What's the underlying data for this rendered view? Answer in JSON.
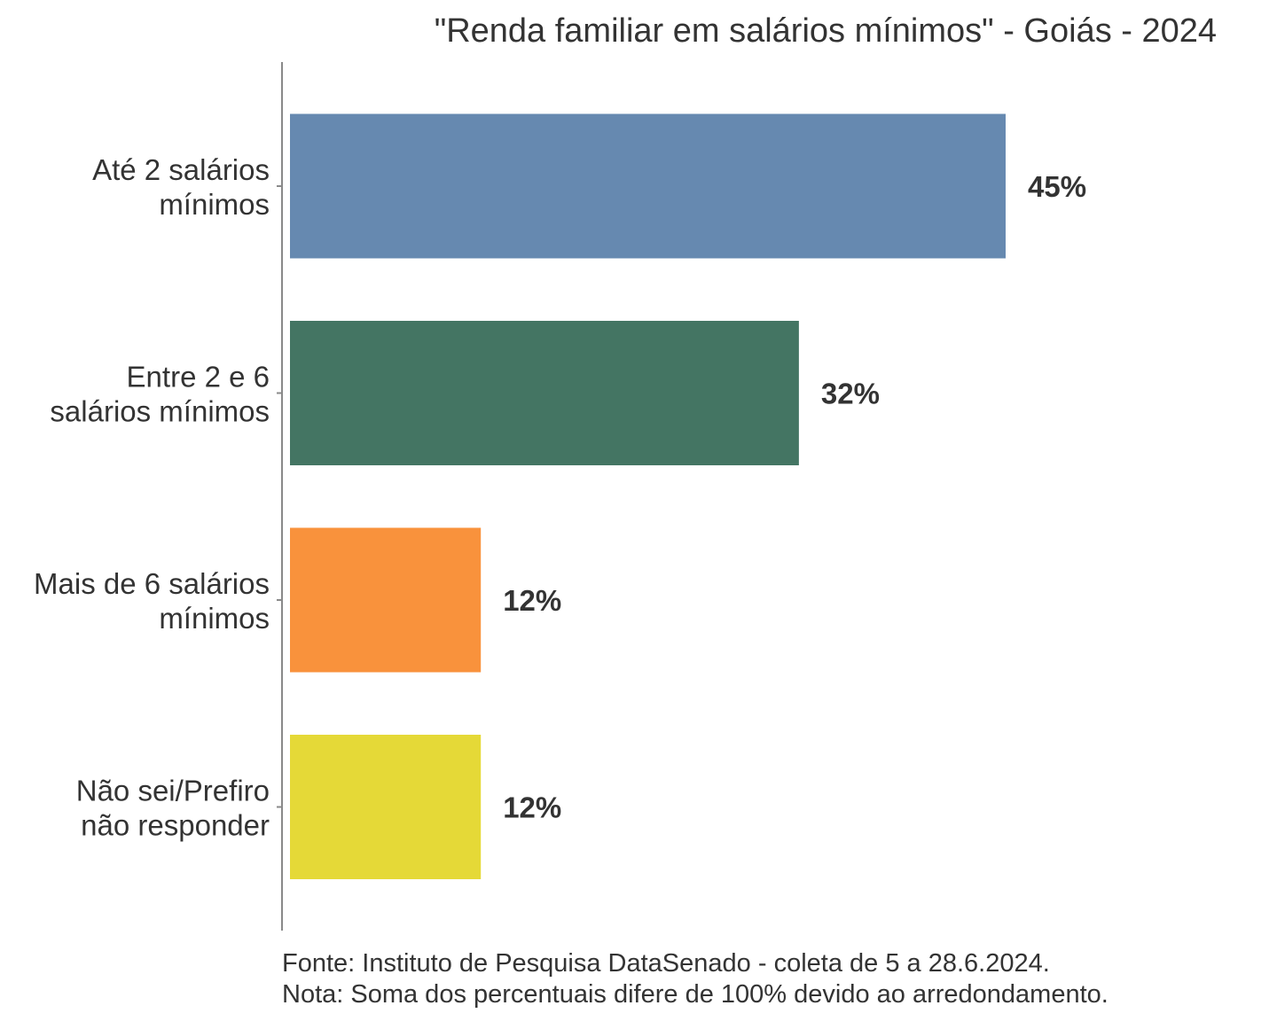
{
  "chart_data": {
    "type": "bar",
    "orientation": "horizontal",
    "title": "\"Renda familiar em salários mínimos\" - Goiás - 2024",
    "categories": [
      [
        "Até 2 salários",
        "mínimos"
      ],
      [
        "Entre 2 e 6",
        "salários mínimos"
      ],
      [
        "Mais de 6 salários",
        "mínimos"
      ],
      [
        "Não sei/Prefiro",
        "não responder"
      ]
    ],
    "values": [
      45,
      32,
      12,
      12
    ],
    "value_labels": [
      "45%",
      "32%",
      "12%",
      "12%"
    ],
    "colors": [
      "#6689b0",
      "#447563",
      "#f9923c",
      "#e5d937"
    ],
    "xlim": [
      0,
      100
    ],
    "xlabel": "",
    "ylabel": "",
    "grid": false,
    "legend": "none",
    "notes": [
      "Fonte: Instituto de Pesquisa DataSenado - coleta de 5 a 28.6.2024.",
      "Nota: Soma dos percentuais difere de 100% devido ao arredondamento."
    ]
  }
}
